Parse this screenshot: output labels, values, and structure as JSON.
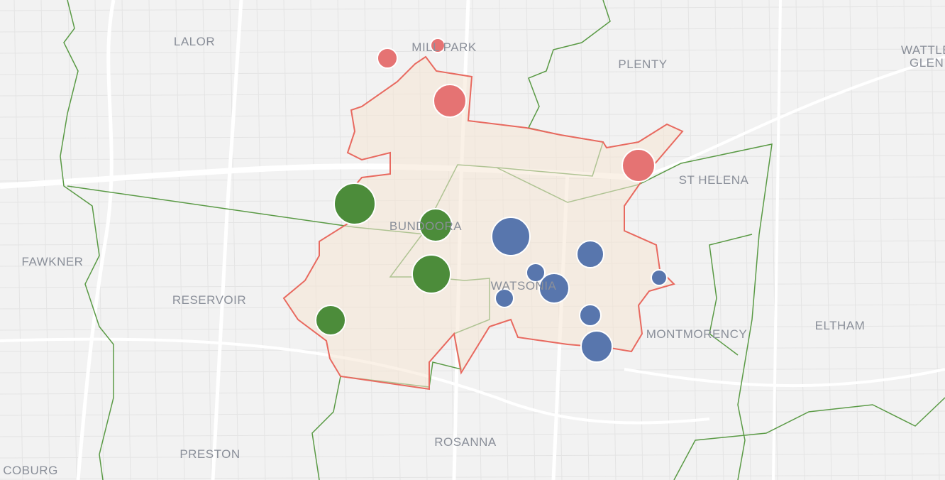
{
  "labels": [
    "LALOR",
    "MILL PARK",
    "PLENTY",
    "WATTLE",
    "GLEN",
    "ST HELENA",
    "FAWKNER",
    "BUNDOORA",
    "RESERVOIR",
    "WATSONIA",
    "MONTMORENCY",
    "ELTHAM",
    "PRESTON",
    "ROSANNA",
    "COBURG"
  ]
}
